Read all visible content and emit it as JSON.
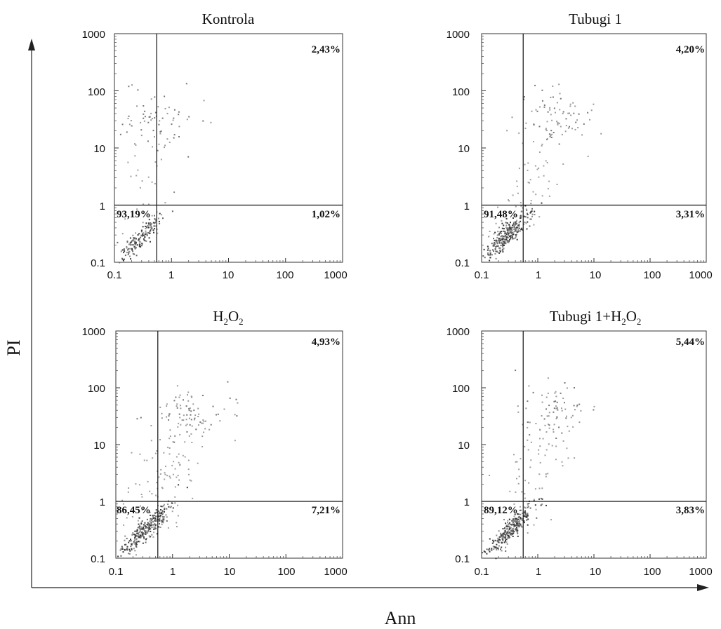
{
  "figure": {
    "x_axis_label": "Ann",
    "y_axis_label": "PI"
  },
  "chart_data": [
    {
      "type": "scatter",
      "title": "Kontrola",
      "x_scale": "log",
      "y_scale": "log",
      "xlim": [
        0.1,
        1000
      ],
      "ylim": [
        0.1,
        1000
      ],
      "x_ticks": [
        "0.1",
        "1",
        "10",
        "100",
        "1000"
      ],
      "y_ticks": [
        "0.1",
        "1",
        "10",
        "100",
        "1000"
      ],
      "quadrant_gates": {
        "x": 0.55,
        "y": 1
      },
      "quadrants": {
        "upper_left": "",
        "upper_right": "2,43%",
        "lower_left": "93,19%",
        "lower_right": "1,02%"
      },
      "density": {
        "main_cluster_center": [
          0.25,
          0.25
        ],
        "main_cluster_size": "medium",
        "upper_population_center": [
          0.5,
          30
        ],
        "diagonal_spread": "low"
      }
    },
    {
      "type": "scatter",
      "title": "Tubugi 1",
      "x_scale": "log",
      "y_scale": "log",
      "xlim": [
        0.1,
        1000
      ],
      "ylim": [
        0.1,
        1000
      ],
      "x_ticks": [
        "0.1",
        "1",
        "10",
        "100",
        "1000"
      ],
      "y_ticks": [
        "0.1",
        "1",
        "10",
        "100",
        "1000"
      ],
      "quadrant_gates": {
        "x": 0.55,
        "y": 1
      },
      "quadrants": {
        "upper_left": "",
        "upper_right": "4,20%",
        "lower_left": "91,48%",
        "lower_right": "3,31%"
      },
      "density": {
        "main_cluster_center": [
          0.28,
          0.3
        ],
        "main_cluster_size": "large",
        "upper_population_center": [
          2,
          40
        ],
        "diagonal_spread": "medium"
      }
    },
    {
      "type": "scatter",
      "title": "H2O2",
      "title_parts": {
        "a": "H",
        "a_sub": "2",
        "b": "O",
        "b_sub": "2"
      },
      "x_scale": "log",
      "y_scale": "log",
      "xlim": [
        0.1,
        1000
      ],
      "ylim": [
        0.1,
        1000
      ],
      "x_ticks": [
        "0.1",
        "1",
        "10",
        "100",
        "1000"
      ],
      "y_ticks": [
        "0.1",
        "1",
        "10",
        "100",
        "1000"
      ],
      "quadrant_gates": {
        "x": 0.55,
        "y": 1
      },
      "quadrants": {
        "upper_left": "",
        "upper_right": "4,93%",
        "lower_left": "86,45%",
        "lower_right": "7,21%"
      },
      "density": {
        "main_cluster_center": [
          0.35,
          0.35
        ],
        "main_cluster_size": "large",
        "upper_population_center": [
          2,
          35
        ],
        "diagonal_spread": "high"
      }
    },
    {
      "type": "scatter",
      "title": "Tubugi 1+H2O2",
      "title_parts": {
        "a": "Tubugi 1+H",
        "a_sub": "2",
        "b": "O",
        "b_sub": "2"
      },
      "x_scale": "log",
      "y_scale": "log",
      "xlim": [
        0.1,
        1000
      ],
      "ylim": [
        0.1,
        1000
      ],
      "x_ticks": [
        "0.1",
        "1",
        "10",
        "100",
        "1000"
      ],
      "y_ticks": [
        "0.1",
        "1",
        "10",
        "100",
        "1000"
      ],
      "quadrant_gates": {
        "x": 0.55,
        "y": 1
      },
      "quadrants": {
        "upper_left": "",
        "upper_right": "5,44%",
        "lower_left": "89,12%",
        "lower_right": "3,83%"
      },
      "density": {
        "main_cluster_center": [
          0.32,
          0.33
        ],
        "main_cluster_size": "large",
        "upper_population_center": [
          2,
          40
        ],
        "diagonal_spread": "medium"
      }
    }
  ]
}
